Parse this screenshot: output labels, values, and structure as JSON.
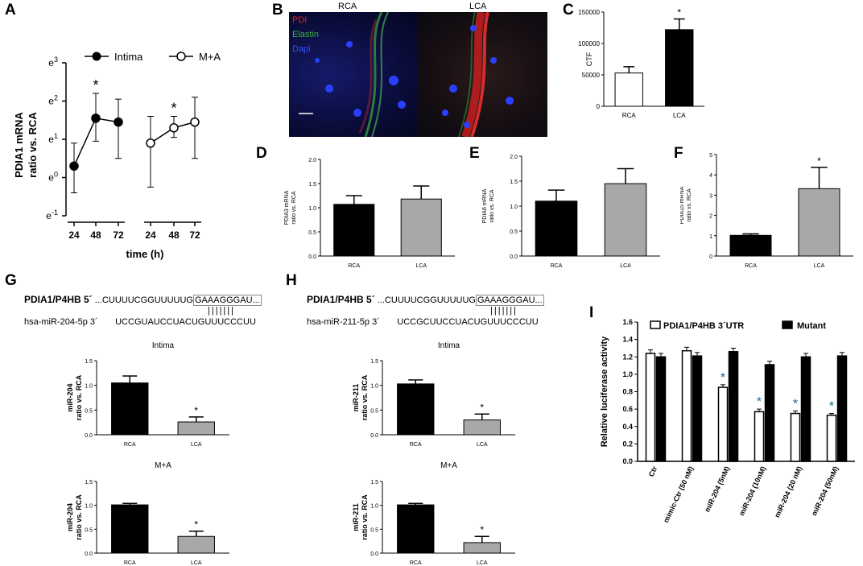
{
  "panel_labels": {
    "A": "A",
    "B": "B",
    "C": "C",
    "D": "D",
    "E": "E",
    "F": "F",
    "G": "G",
    "H": "H",
    "I": "I"
  },
  "microscopy": {
    "left_title": "RCA",
    "right_title": "LCA",
    "legend": [
      {
        "label": "PDI",
        "color": "#e02020"
      },
      {
        "label": "Elastin",
        "color": "#40b040"
      },
      {
        "label": "Dapi",
        "color": "#3050ff"
      }
    ]
  },
  "sequences": {
    "G": {
      "gene": "PDIA1/P4HB 5´",
      "target_prefix": "...CUUUUCGGUUUUUG",
      "target_box": "GAAAGGGAU...",
      "pairs": "|||||||",
      "mirna": "hsa-miR-204-5p  3´",
      "mirna_seq": "UCCGUAUCCUACUGUUUCCCUU"
    },
    "H": {
      "gene": "PDIA1/P4HB 5´",
      "target_prefix": "...CUUUUCGGUUUUUG",
      "target_box": "GAAAGGGAU...",
      "pairs": "|||||||",
      "mirna": "hsa-miR-211-5p  3´",
      "mirna_seq": "UCCGCUUCCUACUGUUUCCCUU"
    }
  },
  "chart_data": [
    {
      "id": "A",
      "type": "line",
      "ylabel": "PDIA1 mRNA ratio vs. RCA",
      "xlabel": "time (h)",
      "yscale": "natural-log",
      "ytick_labels": [
        "e-1",
        "e0",
        "e1",
        "e2",
        "e3"
      ],
      "ylim_exp": [
        -1,
        3
      ],
      "categories": [
        "24",
        "48",
        "72",
        "24",
        "48",
        "72"
      ],
      "series": [
        {
          "name": "Intima",
          "marker": "filled",
          "x": [
            "24",
            "48",
            "72"
          ],
          "y_exp": [
            0.3,
            1.55,
            1.45
          ],
          "err_up_exp": [
            0.9,
            2.2,
            2.05
          ],
          "err_low_exp": [
            -0.4,
            0.95,
            0.5
          ]
        },
        {
          "name": "M+A",
          "marker": "open",
          "x": [
            "24",
            "48",
            "72"
          ],
          "y_exp": [
            0.9,
            1.3,
            1.45
          ],
          "err_up_exp": [
            1.6,
            1.6,
            2.1
          ],
          "err_low_exp": [
            -0.25,
            1.05,
            0.5
          ]
        }
      ],
      "annotations": [
        "*",
        "*"
      ]
    },
    {
      "id": "C",
      "type": "bar",
      "ylabel": "CTF",
      "categories": [
        "RCA",
        "LCA"
      ],
      "values": [
        53000,
        122000
      ],
      "err": [
        10000,
        17000
      ],
      "ylim": [
        0,
        150000
      ],
      "ytick_labels": [
        "0",
        "50000",
        "100000",
        "150000"
      ],
      "colors": [
        "#ffffff",
        "#000000"
      ],
      "sig": "*"
    },
    {
      "id": "D",
      "type": "bar",
      "ylabel": "PDIA3 mRNA ratio vs. RCA",
      "categories": [
        "RCA",
        "LCA"
      ],
      "values": [
        1.07,
        1.18
      ],
      "err": [
        0.18,
        0.27
      ],
      "ylim": [
        0,
        2.0
      ],
      "ytick_labels": [
        "0.0",
        "0.5",
        "1.0",
        "1.5",
        "2.0"
      ],
      "colors": [
        "#000000",
        "#a8a8ab"
      ]
    },
    {
      "id": "E",
      "type": "bar",
      "ylabel": "PDIA6 mRNA ratio vs. RCA",
      "categories": [
        "RCA",
        "LCA"
      ],
      "values": [
        1.1,
        1.45
      ],
      "err": [
        0.22,
        0.3
      ],
      "ylim": [
        0,
        2.0
      ],
      "ytick_labels": [
        "0.0",
        "0.5",
        "1.0",
        "1.5",
        "2.0"
      ],
      "colors": [
        "#000000",
        "#a8a8ab"
      ]
    },
    {
      "id": "F",
      "type": "bar",
      "ylabel": "PDIA15 mRNA ratio vs. RCA",
      "categories": [
        "RCA",
        "LCA"
      ],
      "values": [
        1.02,
        3.32
      ],
      "err": [
        0.07,
        1.05
      ],
      "ylim": [
        0,
        5
      ],
      "ytick_labels": [
        "0",
        "1",
        "2",
        "3",
        "4",
        "5"
      ],
      "colors": [
        "#000000",
        "#a8a8ab"
      ],
      "sig": "*"
    },
    {
      "id": "G1",
      "type": "bar",
      "title": "Intima",
      "ylabel": "miR-204 ratio vs. RCA",
      "categories": [
        "RCA",
        "LCA"
      ],
      "values": [
        1.05,
        0.26
      ],
      "err": [
        0.14,
        0.1
      ],
      "ylim": [
        0,
        1.5
      ],
      "ytick_labels": [
        "0.0",
        "0.5",
        "1.0",
        "1.5"
      ],
      "colors": [
        "#000000",
        "#a8a8ab"
      ],
      "sig": "*"
    },
    {
      "id": "G2",
      "type": "bar",
      "title": "M+A",
      "ylabel": "miR-204 ratio vs. RCA",
      "categories": [
        "RCA",
        "LCA"
      ],
      "values": [
        1.01,
        0.35
      ],
      "err": [
        0.03,
        0.11
      ],
      "ylim": [
        0,
        1.5
      ],
      "ytick_labels": [
        "0.0",
        "0.5",
        "1.0",
        "1.5"
      ],
      "colors": [
        "#000000",
        "#a8a8ab"
      ],
      "sig": "*"
    },
    {
      "id": "H1",
      "type": "bar",
      "title": "Intima",
      "ylabel": "miR-211 ratio vs. RCA",
      "categories": [
        "RCA",
        "LCA"
      ],
      "values": [
        1.03,
        0.3
      ],
      "err": [
        0.08,
        0.12
      ],
      "ylim": [
        0,
        1.5
      ],
      "ytick_labels": [
        "0.0",
        "0.5",
        "1.0",
        "1.5"
      ],
      "colors": [
        "#000000",
        "#a8a8ab"
      ],
      "sig": "*"
    },
    {
      "id": "H2",
      "type": "bar",
      "title": "M+A",
      "ylabel": "miR-211 ratio vs. RCA",
      "categories": [
        "RCA",
        "LCA"
      ],
      "values": [
        1.01,
        0.22
      ],
      "err": [
        0.03,
        0.13
      ],
      "ylim": [
        0,
        1.5
      ],
      "ytick_labels": [
        "0.0",
        "0.5",
        "1.0",
        "1.5"
      ],
      "colors": [
        "#000000",
        "#a8a8ab"
      ],
      "sig": "*"
    },
    {
      "id": "I",
      "type": "bar",
      "ylabel": "Relative luciferase activity",
      "categories": [
        "Ctr",
        "mimic-Ctr (50 nM)",
        "miR-204 (5nM)",
        "miR-204 (10nM)",
        "miR-204 (20 nM)",
        "miR-204 (50nM)"
      ],
      "series": [
        {
          "name": "PDIA1/P4HB 3´UTR",
          "color": "#ffffff",
          "values": [
            1.24,
            1.27,
            0.85,
            0.57,
            0.55,
            0.53
          ],
          "err": [
            0.04,
            0.04,
            0.03,
            0.03,
            0.03,
            0.02
          ]
        },
        {
          "name": "Mutant",
          "color": "#000000",
          "values": [
            1.2,
            1.21,
            1.26,
            1.11,
            1.2,
            1.21
          ],
          "err": [
            0.04,
            0.04,
            0.04,
            0.04,
            0.04,
            0.04
          ]
        }
      ],
      "sig": [
        "",
        "",
        "*",
        "*",
        "*",
        "*"
      ],
      "ylim": [
        0,
        1.6
      ],
      "ytick_labels": [
        "0.0",
        "0.2",
        "0.4",
        "0.6",
        "0.8",
        "1.0",
        "1.2",
        "1.4",
        "1.6"
      ]
    }
  ]
}
